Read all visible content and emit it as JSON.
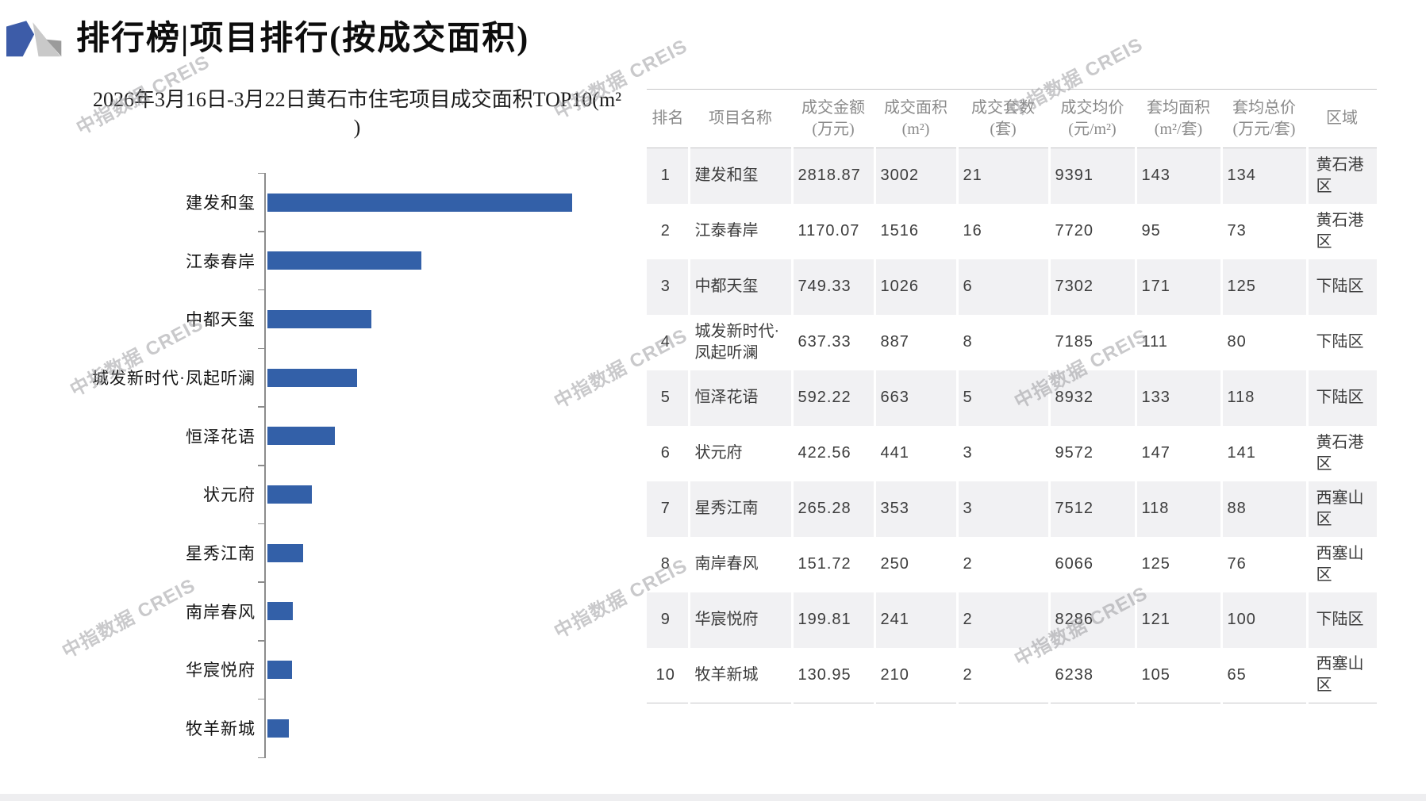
{
  "page": {
    "title": "排行榜|项目排行(按成交面积)",
    "watermark": "中指数据 CREIS"
  },
  "chart_data": {
    "type": "bar",
    "orientation": "horizontal",
    "title": "2026年3月16日-3月22日黄石市住宅项目成交面积TOP10(m²)",
    "title_lines": [
      "2026年3月16日-3月22日黄石市住宅项目成交面积TOP10(m²",
      ")"
    ],
    "categories": [
      "建发和玺",
      "江泰春岸",
      "中都天玺",
      "城发新时代·凤起听澜",
      "恒泽花语",
      "状元府",
      "星秀江南",
      "南岸春风",
      "华宸悦府",
      "牧羊新城"
    ],
    "values": [
      3002,
      1516,
      1026,
      887,
      663,
      441,
      353,
      250,
      241,
      210
    ],
    "unit": "m²",
    "bar_color": "#3360A8",
    "legend": "none",
    "grid": false
  },
  "table": {
    "headers": [
      {
        "line1": "排名",
        "line2": ""
      },
      {
        "line1": "项目名称",
        "line2": ""
      },
      {
        "line1": "成交金额",
        "line2": "(万元)"
      },
      {
        "line1": "成交面积",
        "line2": "(m²)"
      },
      {
        "line1": "成交套数",
        "line2": "(套)"
      },
      {
        "line1": "成交均价",
        "line2": "(元/m²)"
      },
      {
        "line1": "套均面积",
        "line2": "(m²/套)"
      },
      {
        "line1": "套均总价",
        "line2": "(万元/套)"
      },
      {
        "line1": "区域",
        "line2": ""
      }
    ],
    "rows": [
      [
        "1",
        "建发和玺",
        "2818.87",
        "3002",
        "21",
        "9391",
        "143",
        "134",
        "黄石港区"
      ],
      [
        "2",
        "江泰春岸",
        "1170.07",
        "1516",
        "16",
        "7720",
        "95",
        "73",
        "黄石港区"
      ],
      [
        "3",
        "中都天玺",
        "749.33",
        "1026",
        "6",
        "7302",
        "171",
        "125",
        "下陆区"
      ],
      [
        "4",
        "城发新时代·凤起听澜",
        "637.33",
        "887",
        "8",
        "7185",
        "111",
        "80",
        "下陆区"
      ],
      [
        "5",
        "恒泽花语",
        "592.22",
        "663",
        "5",
        "8932",
        "133",
        "118",
        "下陆区"
      ],
      [
        "6",
        "状元府",
        "422.56",
        "441",
        "3",
        "9572",
        "147",
        "141",
        "黄石港区"
      ],
      [
        "7",
        "星秀江南",
        "265.28",
        "353",
        "3",
        "7512",
        "118",
        "88",
        "西塞山区"
      ],
      [
        "8",
        "南岸春风",
        "151.72",
        "250",
        "2",
        "6066",
        "125",
        "76",
        "西塞山区"
      ],
      [
        "9",
        "华宸悦府",
        "199.81",
        "241",
        "2",
        "8286",
        "121",
        "100",
        "下陆区"
      ],
      [
        "10",
        "牧羊新城",
        "130.95",
        "210",
        "2",
        "6238",
        "105",
        "65",
        "西塞山区"
      ]
    ]
  },
  "colors": {
    "bar_blue": "#3360A8",
    "logo_blue": "#3D5CA8",
    "logo_gray_light": "#c9c9c9",
    "logo_gray_dark": "#9b9b9b",
    "stripe": "#f1f1f3",
    "header_text": "#8a8a8a",
    "axis": "#8c8c8c"
  }
}
